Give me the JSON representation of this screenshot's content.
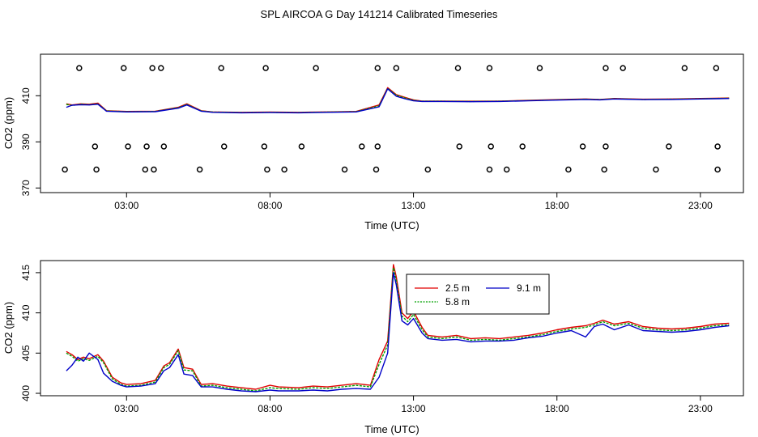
{
  "chart_data": [
    {
      "type": "scatter",
      "title": "SPL AIRCOA G  Day 141214  Calibrated Timeseries",
      "xlabel": "Time (UTC)",
      "ylabel": "CO2 (ppm)",
      "xlim": [
        0,
        24.5
      ],
      "ylim": [
        368,
        428
      ],
      "xticks": [
        3,
        8,
        13,
        18,
        23
      ],
      "xtick_labels": [
        "03:00",
        "08:00",
        "13:00",
        "18:00",
        "23:00"
      ],
      "yticks": [
        370,
        390,
        410
      ],
      "ytick_labels": [
        "370",
        "390",
        "410"
      ],
      "series": [
        {
          "name": "2.5 m",
          "color": "#e00000",
          "x": [
            0.9,
            1.1,
            1.4,
            1.7,
            2.0,
            2.3,
            3.0,
            4.0,
            4.8,
            5.1,
            5.6,
            6.0,
            7.0,
            8.0,
            9.0,
            10.0,
            11.0,
            11.8,
            12.1,
            12.4,
            12.7,
            13.0,
            13.3,
            14.0,
            15.0,
            16.0,
            17.0,
            18.0,
            19.0,
            19.5,
            20.0,
            21.0,
            22.0,
            23.0,
            24.0
          ],
          "y": [
            406.5,
            406.0,
            406.5,
            406.3,
            406.8,
            403.5,
            403.2,
            403.3,
            405.0,
            406.5,
            403.5,
            403.0,
            402.8,
            402.9,
            402.8,
            403.0,
            403.2,
            406.0,
            413.5,
            410.5,
            409.3,
            408.2,
            407.7,
            407.7,
            407.6,
            407.7,
            408.0,
            408.3,
            408.6,
            408.4,
            408.8,
            408.5,
            408.6,
            408.8,
            409.0
          ]
        },
        {
          "name": "5.8 m",
          "color": "#00a000",
          "x": [
            0.9,
            1.1,
            1.4,
            1.7,
            2.0,
            2.3,
            3.0,
            4.0,
            4.8,
            5.1,
            5.6,
            6.0,
            7.0,
            8.0,
            9.0,
            10.0,
            11.0,
            11.8,
            12.1,
            12.4,
            12.7,
            13.0,
            13.3,
            14.0,
            15.0,
            16.0,
            17.0,
            18.0,
            19.0,
            19.5,
            20.0,
            21.0,
            22.0,
            23.0,
            24.0
          ],
          "y": [
            406.2,
            405.8,
            406.3,
            406.1,
            406.5,
            403.4,
            403.1,
            403.2,
            404.8,
            406.2,
            403.4,
            402.9,
            402.7,
            402.8,
            402.7,
            402.9,
            403.1,
            405.6,
            413.2,
            410.2,
            409.0,
            408.0,
            407.6,
            407.6,
            407.5,
            407.6,
            407.9,
            408.2,
            408.5,
            408.3,
            408.7,
            408.4,
            408.5,
            408.7,
            408.9
          ]
        },
        {
          "name": "9.1 m",
          "color": "#0000c8",
          "x": [
            0.9,
            1.1,
            1.4,
            1.7,
            2.0,
            2.3,
            3.0,
            4.0,
            4.8,
            5.1,
            5.6,
            6.0,
            7.0,
            8.0,
            9.0,
            10.0,
            11.0,
            11.8,
            12.1,
            12.4,
            12.7,
            13.0,
            13.3,
            14.0,
            15.0,
            16.0,
            17.0,
            18.0,
            19.0,
            19.5,
            20.0,
            21.0,
            22.0,
            23.0,
            24.0
          ],
          "y": [
            405.0,
            405.9,
            406.1,
            406.0,
            406.3,
            403.3,
            403.0,
            403.1,
            404.6,
            406.0,
            403.3,
            402.8,
            402.6,
            402.7,
            402.6,
            402.8,
            403.0,
            405.2,
            413.0,
            409.8,
            408.7,
            407.8,
            407.5,
            407.5,
            407.4,
            407.5,
            407.8,
            408.1,
            408.4,
            408.2,
            408.6,
            408.3,
            408.4,
            408.6,
            408.8
          ]
        },
        {
          "name": "reference",
          "color": "#000000",
          "marker": "o",
          "x": [
            1.35,
            2.9,
            3.9,
            4.2,
            6.3,
            7.85,
            9.6,
            11.75,
            12.4,
            14.55,
            15.65,
            17.4,
            19.7,
            20.3,
            22.45,
            23.55,
            0.85,
            1.95,
            3.65,
            3.95,
            5.55,
            7.9,
            8.5,
            10.6,
            11.7,
            13.5,
            15.65,
            16.25,
            18.4,
            19.65,
            21.45,
            23.6
          ],
          "y": [
            422,
            422,
            422,
            422,
            422,
            422,
            422,
            422,
            422,
            422,
            422,
            422,
            422,
            422,
            422,
            422,
            378,
            378,
            378,
            378,
            378,
            378,
            378,
            378,
            378,
            378,
            378,
            378,
            378,
            378,
            378,
            378
          ],
          "x2": [
            1.9,
            3.05,
            3.7,
            4.3,
            6.4,
            7.8,
            9.1,
            11.2,
            11.75,
            14.6,
            15.7,
            16.8,
            18.9,
            19.7,
            21.9,
            23.6
          ],
          "y2": [
            388,
            388,
            388,
            388,
            388,
            388,
            388,
            388,
            388,
            388,
            388,
            388,
            388,
            388,
            388,
            388
          ]
        }
      ]
    },
    {
      "type": "line",
      "xlabel": "Time (UTC)",
      "ylabel": "CO2 (ppm)",
      "xlim": [
        0,
        24.5
      ],
      "ylim": [
        399.7,
        416.5
      ],
      "xticks": [
        3,
        8,
        13,
        18,
        23
      ],
      "xtick_labels": [
        "03:00",
        "08:00",
        "13:00",
        "18:00",
        "23:00"
      ],
      "yticks": [
        400,
        405,
        410,
        415
      ],
      "ytick_labels": [
        "400",
        "405",
        "410",
        "415"
      ],
      "legend_position": "top-center",
      "series": [
        {
          "name": "2.5 m",
          "color": "#e00000",
          "x": [
            0.9,
            1.1,
            1.3,
            1.5,
            1.7,
            2.0,
            2.2,
            2.5,
            2.8,
            3.0,
            3.5,
            4.0,
            4.3,
            4.5,
            4.8,
            5.0,
            5.3,
            5.6,
            6.0,
            6.5,
            7.0,
            7.5,
            8.0,
            8.3,
            9.0,
            9.5,
            10.0,
            10.5,
            11.0,
            11.5,
            11.8,
            12.1,
            12.3,
            12.4,
            12.6,
            12.8,
            13.0,
            13.3,
            13.5,
            14.0,
            14.5,
            15.0,
            15.5,
            16.0,
            16.5,
            17.0,
            17.5,
            18.0,
            18.5,
            19.0,
            19.3,
            19.6,
            20.0,
            20.5,
            21.0,
            21.5,
            22.0,
            22.5,
            23.0,
            23.5,
            24.0
          ],
          "y": [
            405.2,
            404.8,
            404.2,
            404.5,
            404.3,
            404.8,
            404.0,
            402.0,
            401.3,
            401.1,
            401.2,
            401.6,
            403.4,
            403.8,
            405.5,
            403.2,
            403.0,
            401.1,
            401.2,
            400.9,
            400.7,
            400.5,
            401.0,
            400.8,
            400.7,
            400.9,
            400.8,
            401.0,
            401.2,
            401.0,
            404.2,
            406.5,
            416.0,
            414.5,
            410.0,
            409.3,
            410.2,
            408.2,
            407.2,
            407.0,
            407.2,
            406.8,
            406.9,
            406.8,
            407.0,
            407.2,
            407.5,
            407.9,
            408.2,
            408.4,
            408.7,
            409.1,
            408.6,
            408.9,
            408.3,
            408.1,
            408.0,
            408.1,
            408.3,
            408.6,
            408.7
          ]
        },
        {
          "name": "5.8 m",
          "color": "#00a000",
          "x": [
            0.9,
            1.1,
            1.3,
            1.5,
            1.7,
            2.0,
            2.2,
            2.5,
            2.8,
            3.0,
            3.5,
            4.0,
            4.3,
            4.5,
            4.8,
            5.0,
            5.3,
            5.6,
            6.0,
            6.5,
            7.0,
            7.5,
            8.0,
            8.3,
            9.0,
            9.5,
            10.0,
            10.5,
            11.0,
            11.5,
            11.8,
            12.1,
            12.3,
            12.4,
            12.6,
            12.8,
            13.0,
            13.3,
            13.5,
            14.0,
            14.5,
            15.0,
            15.5,
            16.0,
            16.5,
            17.0,
            17.5,
            18.0,
            18.5,
            19.0,
            19.3,
            19.6,
            20.0,
            20.5,
            21.0,
            21.5,
            22.0,
            22.5,
            23.0,
            23.5,
            24.0
          ],
          "y": [
            405.0,
            404.6,
            404.0,
            404.3,
            404.1,
            404.6,
            403.8,
            401.8,
            401.1,
            400.9,
            401.0,
            401.4,
            403.2,
            403.6,
            405.3,
            402.9,
            402.8,
            400.9,
            401.0,
            400.7,
            400.5,
            400.3,
            400.7,
            400.6,
            400.5,
            400.7,
            400.6,
            400.8,
            401.0,
            400.8,
            403.6,
            406.0,
            415.6,
            414.0,
            409.6,
            408.9,
            409.8,
            407.9,
            407.0,
            406.8,
            407.0,
            406.6,
            406.7,
            406.6,
            406.8,
            407.0,
            407.3,
            407.7,
            408.0,
            408.2,
            408.5,
            408.9,
            408.4,
            408.7,
            408.1,
            407.9,
            407.8,
            407.9,
            408.1,
            408.4,
            408.5
          ]
        },
        {
          "name": "9.1 m",
          "color": "#0000c8",
          "x": [
            0.9,
            1.1,
            1.3,
            1.5,
            1.7,
            2.0,
            2.2,
            2.5,
            2.8,
            3.0,
            3.5,
            4.0,
            4.3,
            4.5,
            4.8,
            5.0,
            5.3,
            5.6,
            6.0,
            6.5,
            7.0,
            7.5,
            8.0,
            8.3,
            9.0,
            9.5,
            10.0,
            10.5,
            11.0,
            11.5,
            11.8,
            12.1,
            12.3,
            12.4,
            12.6,
            12.8,
            13.0,
            13.3,
            13.5,
            14.0,
            14.5,
            15.0,
            15.5,
            16.0,
            16.5,
            17.0,
            17.5,
            18.0,
            18.5,
            19.0,
            19.3,
            19.6,
            20.0,
            20.5,
            21.0,
            21.5,
            22.0,
            22.5,
            23.0,
            23.5,
            24.0
          ],
          "y": [
            402.8,
            403.5,
            404.5,
            404.0,
            405.0,
            404.2,
            402.5,
            401.5,
            401.0,
            400.8,
            400.9,
            401.2,
            402.8,
            403.2,
            404.8,
            402.4,
            402.2,
            400.8,
            400.8,
            400.5,
            400.3,
            400.2,
            400.4,
            400.3,
            400.3,
            400.4,
            400.3,
            400.5,
            400.6,
            400.5,
            402.0,
            405.0,
            415.0,
            413.5,
            409.0,
            408.5,
            409.3,
            407.5,
            406.8,
            406.6,
            406.7,
            406.4,
            406.5,
            406.5,
            406.6,
            406.9,
            407.1,
            407.5,
            407.8,
            407.0,
            408.3,
            408.6,
            407.9,
            408.5,
            407.8,
            407.7,
            407.6,
            407.7,
            407.9,
            408.2,
            408.4
          ]
        }
      ]
    }
  ]
}
